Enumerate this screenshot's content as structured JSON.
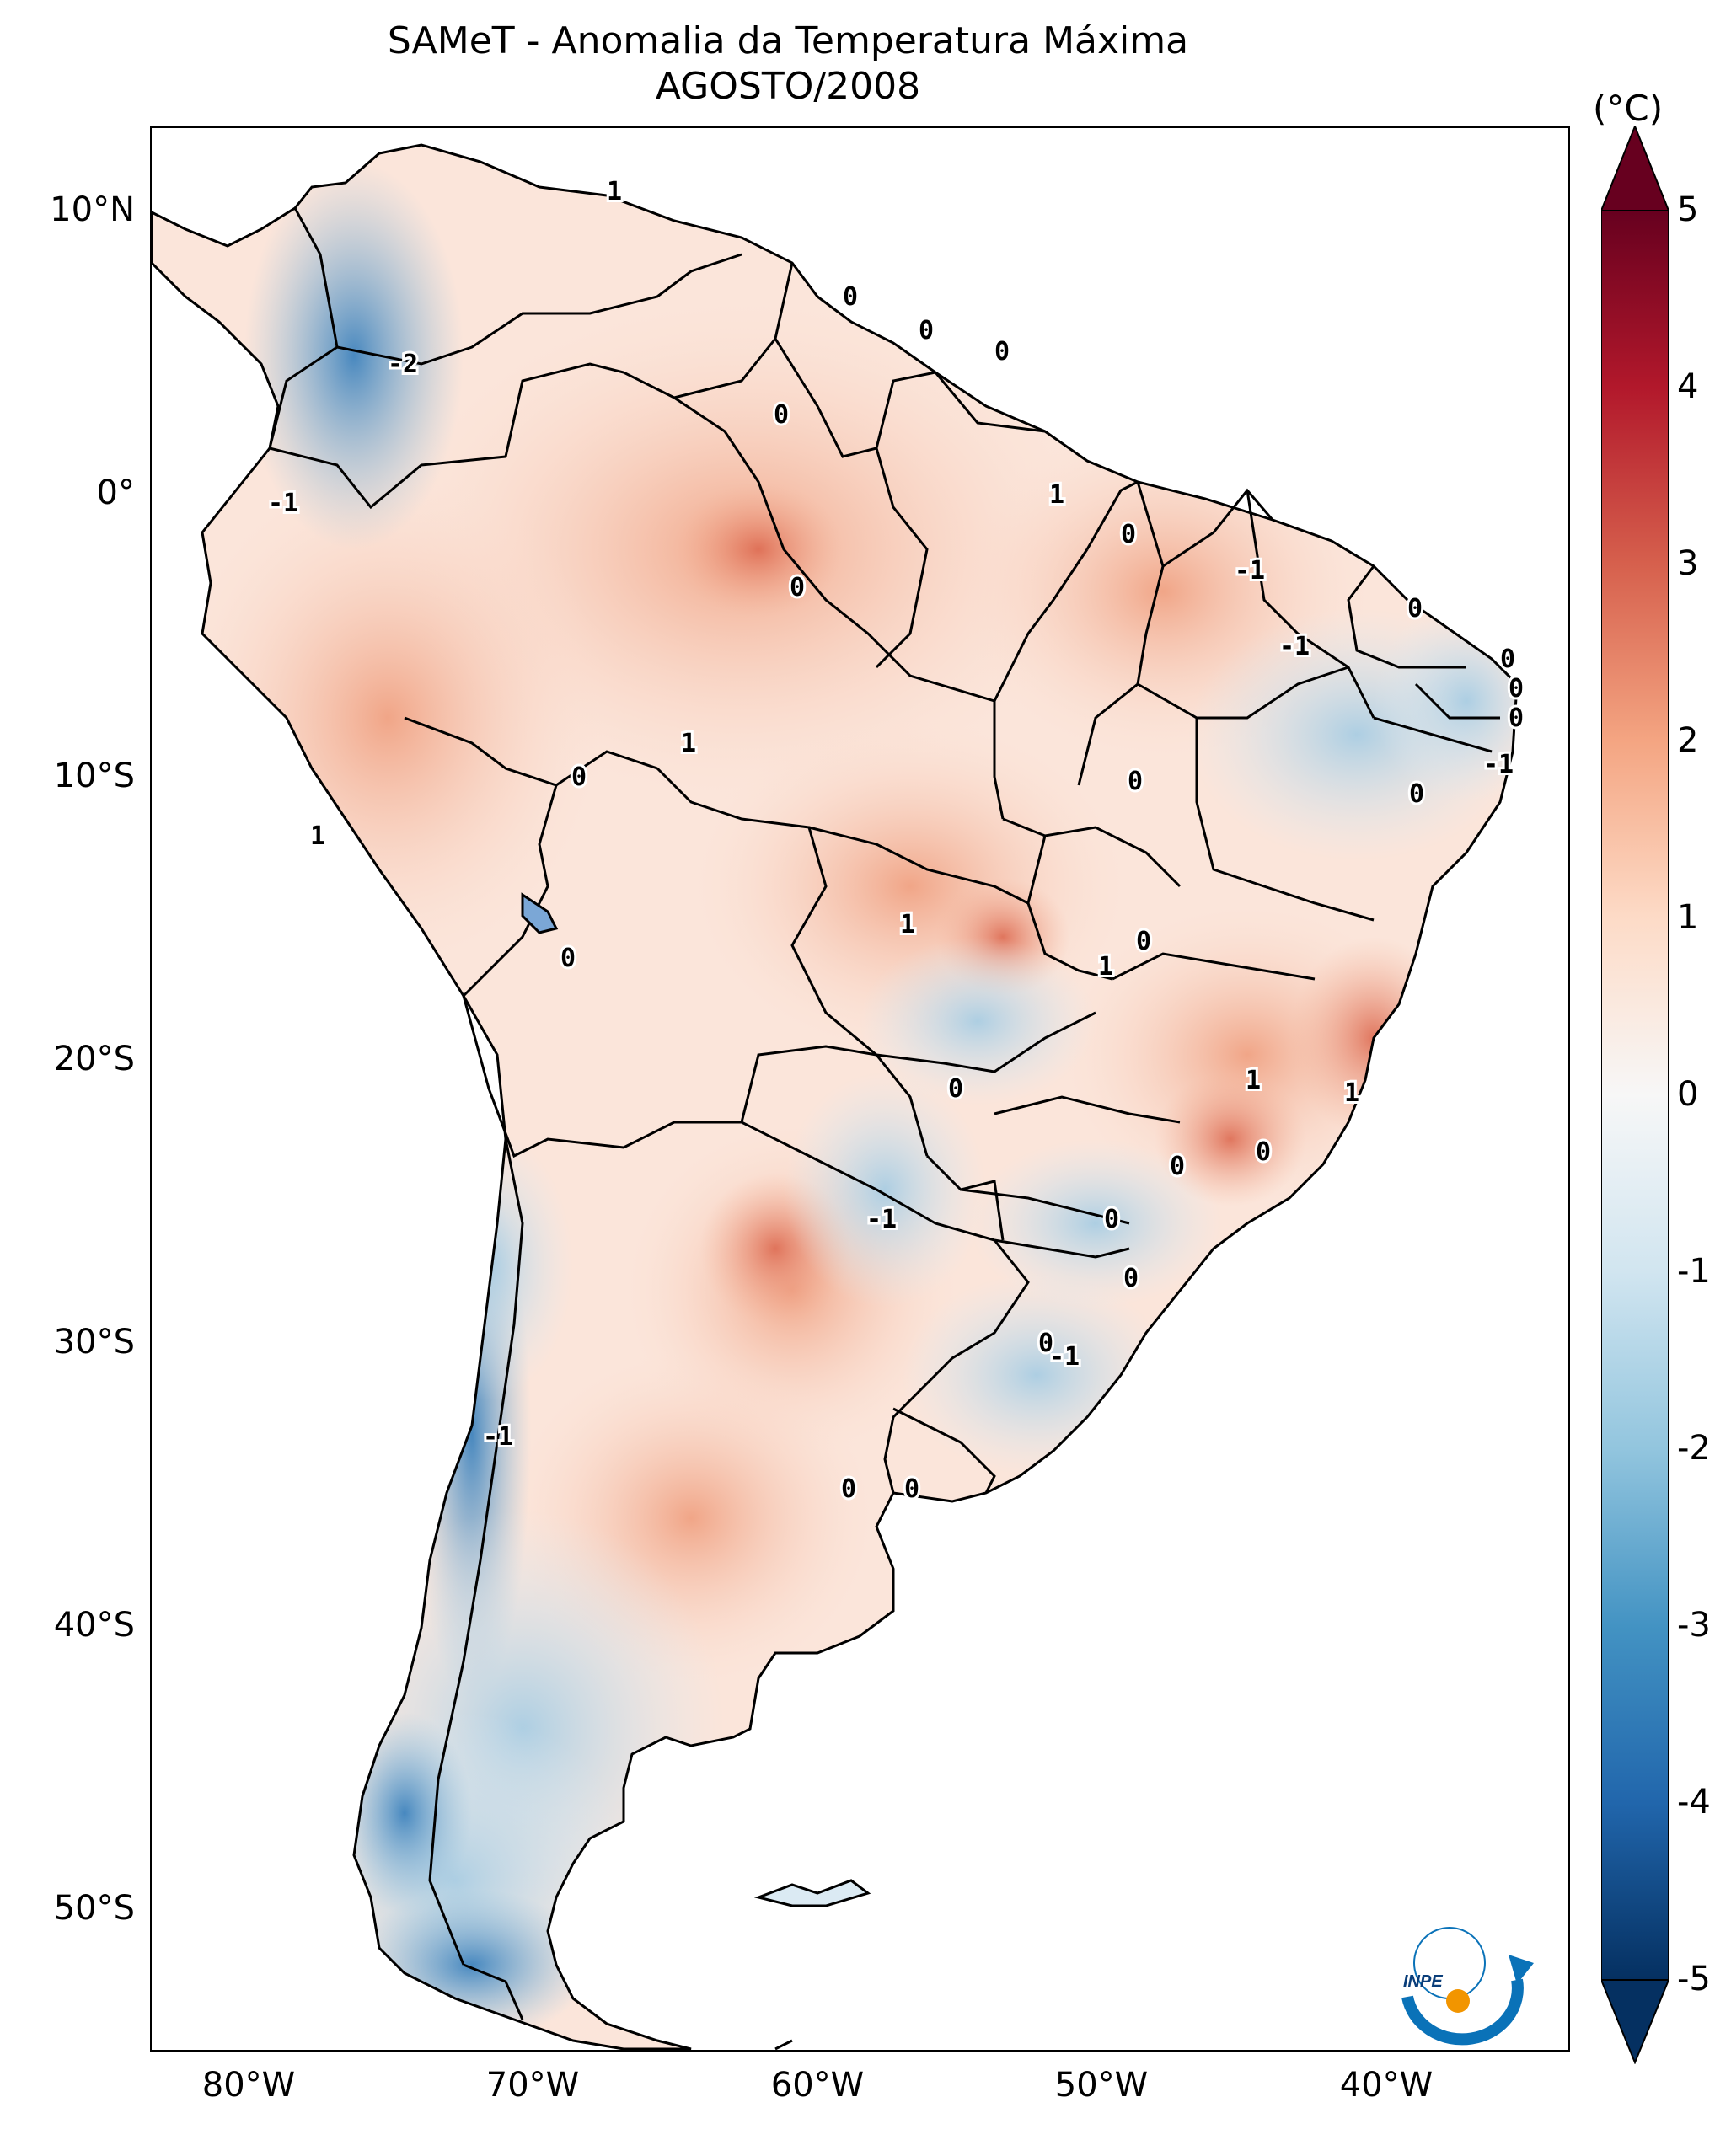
{
  "title": {
    "line1": "SAMeT - Anomalia da Temperatura Máxima",
    "line2": "AGOSTO/2008"
  },
  "axes": {
    "lat_ticks": [
      "10°N",
      "0°",
      "10°S",
      "20°S",
      "30°S",
      "40°S",
      "50°S"
    ],
    "lon_ticks": [
      "80°W",
      "70°W",
      "60°W",
      "50°W",
      "40°W"
    ]
  },
  "colorbar": {
    "unit": "(°C)",
    "min": -5,
    "max": 5,
    "tick_labels": [
      "5",
      "4",
      "3",
      "2",
      "1",
      "0",
      "-1",
      "-2",
      "-3",
      "-4",
      "-5"
    ],
    "colors": [
      "#053061",
      "#2166ac",
      "#4393c3",
      "#92c5de",
      "#d1e5f0",
      "#f7f7f7",
      "#fddbc7",
      "#f4a582",
      "#d6604d",
      "#b2182b",
      "#67001f"
    ]
  },
  "contour_labels": [
    "1",
    "0",
    "0",
    "0",
    "-2",
    "0",
    "1",
    "-1",
    "0",
    "0",
    "-1",
    "0",
    "-1",
    "0",
    "0",
    "0",
    "-1",
    "1",
    "0",
    "0",
    "1",
    "0",
    "1",
    "0",
    "0",
    "1",
    "0",
    "1",
    "1",
    "0",
    "0",
    "0",
    "-1",
    "0",
    "0",
    "-1",
    "-1",
    "0",
    "0"
  ],
  "logo": {
    "text": "INPE"
  }
}
